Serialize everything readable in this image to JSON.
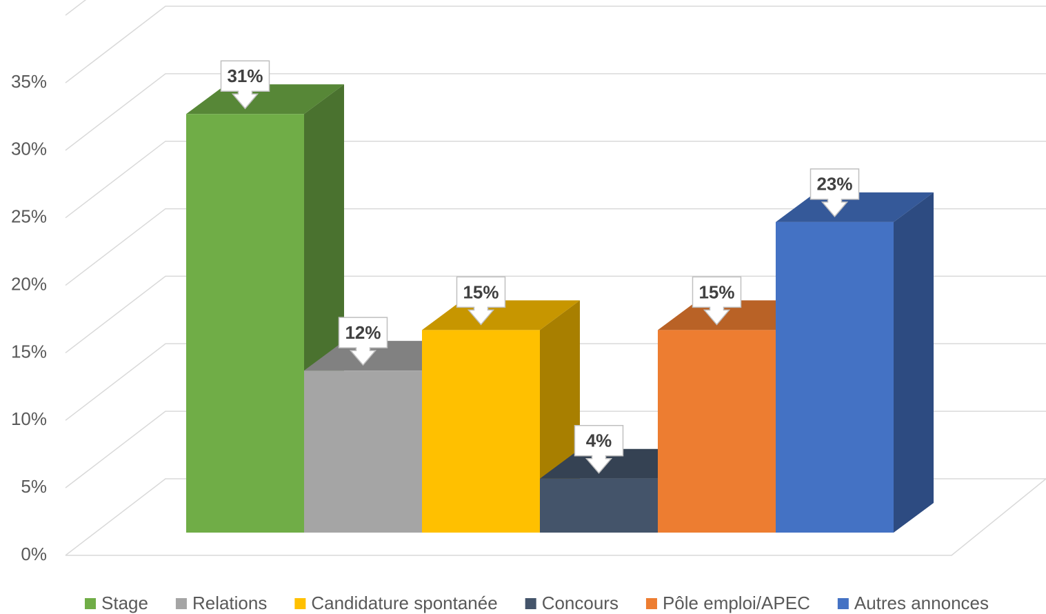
{
  "chart_data": {
    "type": "bar3d",
    "categories": [
      "Stage",
      "Relations",
      "Candidature spontanée",
      "Concours",
      "Pôle emploi/APEC",
      "Autres annonces"
    ],
    "values": [
      31,
      12,
      15,
      4,
      15,
      23
    ],
    "value_labels": [
      "31%",
      "12%",
      "15%",
      "4%",
      "15%",
      "23%"
    ],
    "colors": [
      "#70ad47",
      "#a5a5a5",
      "#ffc000",
      "#44546a",
      "#ed7d31",
      "#4472c4"
    ],
    "ylim": [
      0,
      40
    ],
    "yticks": [
      {
        "value": 0,
        "label": "0%"
      },
      {
        "value": 5,
        "label": "5%"
      },
      {
        "value": 10,
        "label": "10%"
      },
      {
        "value": 15,
        "label": "15%"
      },
      {
        "value": 20,
        "label": "20%"
      },
      {
        "value": 25,
        "label": "25%"
      },
      {
        "value": 30,
        "label": "30%"
      },
      {
        "value": 35,
        "label": "35%"
      }
    ],
    "grid": true,
    "legend": "bottom"
  }
}
